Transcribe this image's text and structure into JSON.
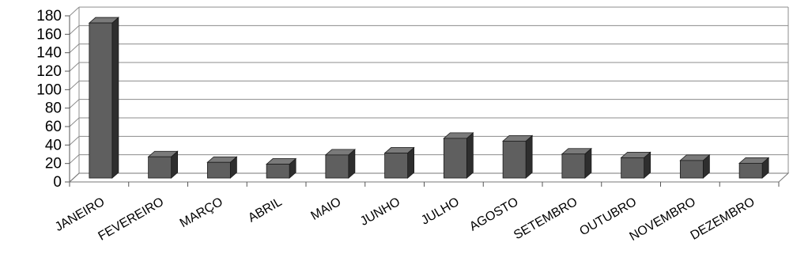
{
  "chart_data": {
    "type": "bar",
    "categories": [
      "JANEIRO",
      "FEVEREIRO",
      "MARÇO",
      "ABRIL",
      "MAIO",
      "JUNHO",
      "JULHO",
      "AGOSTO",
      "SETEMBRO",
      "OUTUBRO",
      "NOVEMBRO",
      "DEZEMBRO"
    ],
    "values": [
      168,
      23,
      17,
      15,
      25,
      27,
      43,
      40,
      26,
      22,
      19,
      16
    ],
    "title": "",
    "xlabel": "",
    "ylabel": "",
    "ylim": [
      0,
      180
    ],
    "yticks": [
      "0",
      "20",
      "40",
      "60",
      "80",
      "100",
      "120",
      "140",
      "160",
      "180"
    ],
    "grid": true,
    "legend": "none",
    "style": "3d-column",
    "colors": {
      "bar_front": "#5f5f5f",
      "bar_side": "#2e2e2e",
      "bar_top": "#7a7a7a",
      "grid": "#8c8c8c"
    }
  }
}
